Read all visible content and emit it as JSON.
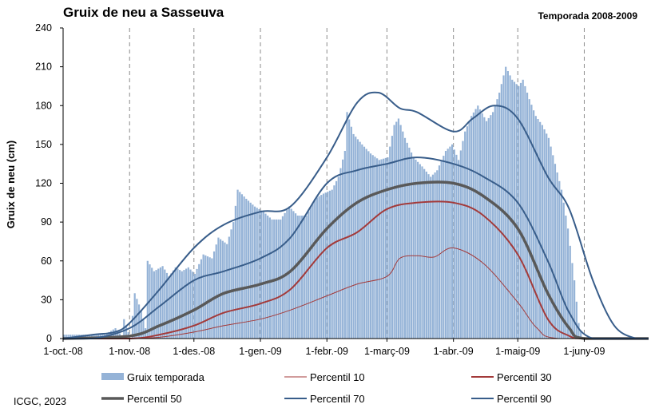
{
  "chart_data": {
    "type": "bar+line",
    "title": "Gruix de neu a Sasseuva",
    "subtitle": "Temporada 2008-2009",
    "ylabel": "Gruix de neu (cm)",
    "xlabel": "",
    "ylim": [
      0,
      240
    ],
    "yticks": [
      0,
      30,
      60,
      90,
      120,
      150,
      180,
      210,
      240
    ],
    "xlim": [
      "2008-10-01",
      "2009-07-01"
    ],
    "xticks": [
      {
        "date": "2008-10-01",
        "label": "1-oct.-08"
      },
      {
        "date": "2008-11-01",
        "label": "1-nov.-08"
      },
      {
        "date": "2008-12-01",
        "label": "1-des.-08"
      },
      {
        "date": "2009-01-01",
        "label": "1-gen.-09"
      },
      {
        "date": "2009-02-01",
        "label": "1-febr.-09"
      },
      {
        "date": "2009-03-01",
        "label": "1-març-09"
      },
      {
        "date": "2009-04-01",
        "label": "1-abr.-09"
      },
      {
        "date": "2009-05-01",
        "label": "1-maig-09"
      },
      {
        "date": "2009-06-01",
        "label": "1-juny-09"
      }
    ],
    "grid": {
      "vertical": true,
      "horizontal": false,
      "style": "dashed"
    },
    "legend_position": "bottom",
    "bars": {
      "name": "Gruix temporada",
      "color": "#95b3d7",
      "points": [
        [
          "2008-10-01",
          3
        ],
        [
          "2008-10-10",
          3
        ],
        [
          "2008-10-20",
          3
        ],
        [
          "2008-10-25",
          8
        ],
        [
          "2008-10-28",
          2
        ],
        [
          "2008-10-29",
          15
        ],
        [
          "2008-11-01",
          0
        ],
        [
          "2008-11-03",
          35
        ],
        [
          "2008-11-06",
          22
        ],
        [
          "2008-11-08",
          8
        ],
        [
          "2008-11-09",
          60
        ],
        [
          "2008-11-12",
          52
        ],
        [
          "2008-11-16",
          56
        ],
        [
          "2008-11-19",
          48
        ],
        [
          "2008-11-22",
          55
        ],
        [
          "2008-11-25",
          52
        ],
        [
          "2008-11-28",
          55
        ],
        [
          "2008-12-01",
          50
        ],
        [
          "2008-12-05",
          65
        ],
        [
          "2008-12-09",
          62
        ],
        [
          "2008-12-12",
          78
        ],
        [
          "2008-12-16",
          73
        ],
        [
          "2008-12-19",
          90
        ],
        [
          "2008-12-21",
          115
        ],
        [
          "2008-12-25",
          108
        ],
        [
          "2008-12-29",
          102
        ],
        [
          "2009-01-02",
          98
        ],
        [
          "2009-01-06",
          92
        ],
        [
          "2009-01-10",
          92
        ],
        [
          "2009-01-14",
          102
        ],
        [
          "2009-01-18",
          95
        ],
        [
          "2009-01-22",
          95
        ],
        [
          "2009-01-26",
          108
        ],
        [
          "2009-01-30",
          112
        ],
        [
          "2009-02-03",
          115
        ],
        [
          "2009-02-06",
          125
        ],
        [
          "2009-02-09",
          145
        ],
        [
          "2009-02-10",
          175
        ],
        [
          "2009-02-13",
          158
        ],
        [
          "2009-02-17",
          150
        ],
        [
          "2009-02-21",
          143
        ],
        [
          "2009-02-25",
          138
        ],
        [
          "2009-03-01",
          140
        ],
        [
          "2009-03-04",
          165
        ],
        [
          "2009-03-06",
          170
        ],
        [
          "2009-03-09",
          155
        ],
        [
          "2009-03-13",
          140
        ],
        [
          "2009-03-17",
          133
        ],
        [
          "2009-03-21",
          125
        ],
        [
          "2009-03-24",
          130
        ],
        [
          "2009-03-28",
          145
        ],
        [
          "2009-03-31",
          150
        ],
        [
          "2009-04-03",
          138
        ],
        [
          "2009-04-06",
          160
        ],
        [
          "2009-04-09",
          172
        ],
        [
          "2009-04-12",
          180
        ],
        [
          "2009-04-16",
          168
        ],
        [
          "2009-04-19",
          175
        ],
        [
          "2009-04-22",
          190
        ],
        [
          "2009-04-25",
          210
        ],
        [
          "2009-04-28",
          200
        ],
        [
          "2009-05-01",
          195
        ],
        [
          "2009-05-03",
          200
        ],
        [
          "2009-05-06",
          185
        ],
        [
          "2009-05-09",
          172
        ],
        [
          "2009-05-12",
          165
        ],
        [
          "2009-05-15",
          155
        ],
        [
          "2009-05-18",
          135
        ],
        [
          "2009-05-21",
          115
        ],
        [
          "2009-05-24",
          85
        ],
        [
          "2009-05-27",
          45
        ],
        [
          "2009-05-29",
          12
        ],
        [
          "2009-05-31",
          0
        ]
      ]
    },
    "series": [
      {
        "name": "Percentil 10",
        "color": "#a33a3a",
        "width": 1,
        "points": [
          [
            "2008-10-01",
            0
          ],
          [
            "2008-11-01",
            0
          ],
          [
            "2008-11-15",
            1
          ],
          [
            "2008-12-01",
            5
          ],
          [
            "2008-12-15",
            10
          ],
          [
            "2009-01-01",
            15
          ],
          [
            "2009-01-15",
            22
          ],
          [
            "2009-02-01",
            33
          ],
          [
            "2009-02-15",
            42
          ],
          [
            "2009-03-01",
            48
          ],
          [
            "2009-03-07",
            62
          ],
          [
            "2009-03-15",
            64
          ],
          [
            "2009-03-23",
            63
          ],
          [
            "2009-04-01",
            70
          ],
          [
            "2009-04-15",
            58
          ],
          [
            "2009-05-01",
            28
          ],
          [
            "2009-05-10",
            8
          ],
          [
            "2009-05-20",
            0
          ],
          [
            "2009-07-01",
            0
          ]
        ]
      },
      {
        "name": "Percentil 30",
        "color": "#a33a3a",
        "width": 2,
        "points": [
          [
            "2008-10-01",
            0
          ],
          [
            "2008-11-01",
            0
          ],
          [
            "2008-11-15",
            3
          ],
          [
            "2008-12-01",
            10
          ],
          [
            "2008-12-15",
            20
          ],
          [
            "2009-01-01",
            27
          ],
          [
            "2009-01-15",
            38
          ],
          [
            "2009-02-01",
            70
          ],
          [
            "2009-02-15",
            82
          ],
          [
            "2009-03-01",
            100
          ],
          [
            "2009-03-15",
            105
          ],
          [
            "2009-04-01",
            105
          ],
          [
            "2009-04-15",
            95
          ],
          [
            "2009-05-01",
            65
          ],
          [
            "2009-05-15",
            15
          ],
          [
            "2009-05-25",
            2
          ],
          [
            "2009-06-01",
            0
          ],
          [
            "2009-07-01",
            0
          ]
        ]
      },
      {
        "name": "Percentil 50",
        "color": "#595959",
        "width": 3.5,
        "points": [
          [
            "2008-10-01",
            0
          ],
          [
            "2008-11-01",
            2
          ],
          [
            "2008-11-15",
            10
          ],
          [
            "2008-12-01",
            22
          ],
          [
            "2008-12-15",
            35
          ],
          [
            "2009-01-01",
            42
          ],
          [
            "2009-01-15",
            52
          ],
          [
            "2009-02-01",
            85
          ],
          [
            "2009-02-15",
            105
          ],
          [
            "2009-03-01",
            115
          ],
          [
            "2009-03-15",
            120
          ],
          [
            "2009-04-01",
            120
          ],
          [
            "2009-04-15",
            110
          ],
          [
            "2009-05-01",
            85
          ],
          [
            "2009-05-15",
            35
          ],
          [
            "2009-05-25",
            8
          ],
          [
            "2009-06-01",
            0
          ],
          [
            "2009-07-01",
            0
          ]
        ]
      },
      {
        "name": "Percentil 70",
        "color": "#385d8a",
        "width": 2,
        "points": [
          [
            "2008-10-01",
            0
          ],
          [
            "2008-10-15",
            0
          ],
          [
            "2008-11-01",
            8
          ],
          [
            "2008-11-15",
            25
          ],
          [
            "2008-12-01",
            45
          ],
          [
            "2008-12-15",
            52
          ],
          [
            "2009-01-01",
            62
          ],
          [
            "2009-01-15",
            78
          ],
          [
            "2009-02-01",
            120
          ],
          [
            "2009-02-15",
            130
          ],
          [
            "2009-03-01",
            135
          ],
          [
            "2009-03-15",
            140
          ],
          [
            "2009-04-01",
            135
          ],
          [
            "2009-04-15",
            125
          ],
          [
            "2009-05-01",
            105
          ],
          [
            "2009-05-15",
            60
          ],
          [
            "2009-05-25",
            20
          ],
          [
            "2009-06-05",
            0
          ],
          [
            "2009-07-01",
            0
          ]
        ]
      },
      {
        "name": "Percentil 90",
        "color": "#385d8a",
        "width": 2,
        "points": [
          [
            "2008-10-01",
            0
          ],
          [
            "2008-10-15",
            3
          ],
          [
            "2008-10-25",
            5
          ],
          [
            "2008-11-01",
            12
          ],
          [
            "2008-11-15",
            38
          ],
          [
            "2008-12-01",
            70
          ],
          [
            "2008-12-15",
            88
          ],
          [
            "2009-01-01",
            98
          ],
          [
            "2009-01-15",
            102
          ],
          [
            "2009-02-01",
            140
          ],
          [
            "2009-02-15",
            182
          ],
          [
            "2009-02-25",
            190
          ],
          [
            "2009-03-07",
            178
          ],
          [
            "2009-03-15",
            175
          ],
          [
            "2009-04-01",
            160
          ],
          [
            "2009-04-10",
            170
          ],
          [
            "2009-04-20",
            180
          ],
          [
            "2009-05-01",
            170
          ],
          [
            "2009-05-15",
            125
          ],
          [
            "2009-05-25",
            100
          ],
          [
            "2009-06-05",
            45
          ],
          [
            "2009-06-15",
            10
          ],
          [
            "2009-06-25",
            0
          ],
          [
            "2009-07-01",
            0
          ]
        ]
      }
    ],
    "legend": [
      {
        "key": "bars",
        "label": "Gruix temporada"
      },
      {
        "key": "p10",
        "label": "Percentil 10"
      },
      {
        "key": "p30",
        "label": "Percentil 30"
      },
      {
        "key": "p50",
        "label": "Percentil 50"
      },
      {
        "key": "p70",
        "label": "Percentil 70"
      },
      {
        "key": "p90",
        "label": "Percentil 90"
      }
    ]
  },
  "credit": "ICGC, 2023"
}
